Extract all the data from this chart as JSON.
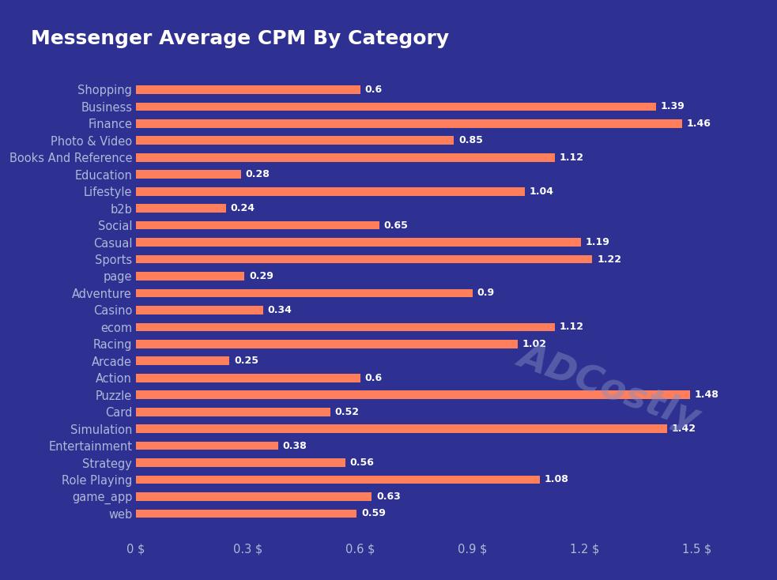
{
  "title": "Messenger Average CPM By Category",
  "background_color": "#2e3192",
  "bar_color": "#ff7f5c",
  "text_color": "#ffffff",
  "label_text_color": "#b0b8d8",
  "watermark": "ADCostly",
  "categories": [
    "Shopping",
    "Business",
    "Finance",
    "Photo & Video",
    "Books And Reference",
    "Education",
    "Lifestyle",
    "b2b",
    "Social",
    "Casual",
    "Sports",
    "page",
    "Adventure",
    "Casino",
    "ecom",
    "Racing",
    "Arcade",
    "Action",
    "Puzzle",
    "Card",
    "Simulation",
    "Entertainment",
    "Strategy",
    "Role Playing",
    "game_app",
    "web"
  ],
  "values": [
    0.6,
    1.39,
    1.46,
    0.85,
    1.12,
    0.28,
    1.04,
    0.24,
    0.65,
    1.19,
    1.22,
    0.29,
    0.9,
    0.34,
    1.12,
    1.02,
    0.25,
    0.6,
    1.48,
    0.52,
    1.42,
    0.38,
    0.56,
    1.08,
    0.63,
    0.59
  ],
  "xlim": [
    0,
    1.62
  ],
  "xticks": [
    0,
    0.3,
    0.6,
    0.9,
    1.2,
    1.5
  ],
  "xtick_labels": [
    "0 $",
    "0.3 $",
    "0.6 $",
    "0.9 $",
    "1.2 $",
    "1.5 $"
  ],
  "title_fontsize": 18,
  "label_fontsize": 10.5,
  "value_fontsize": 9,
  "bar_height": 0.5
}
